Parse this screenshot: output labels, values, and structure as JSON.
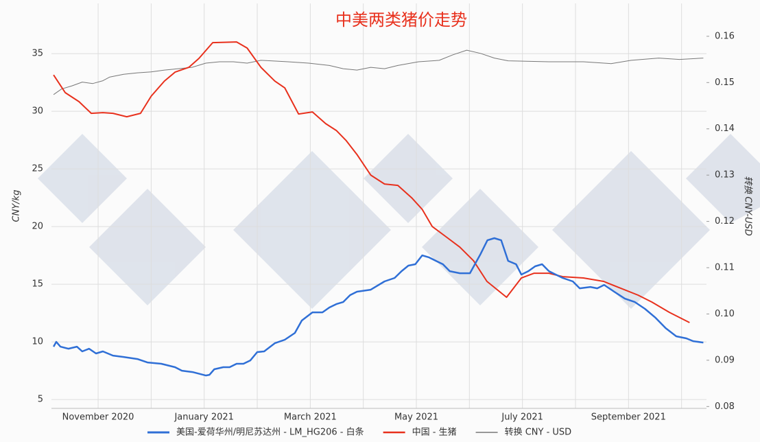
{
  "chart_data": {
    "type": "line",
    "title": "中美两类猪价走势",
    "ylabel": "CNY/kg",
    "y2label": "转换 CNY-USD",
    "xlim": [
      10.12,
      22.47
    ],
    "xticks": [
      {
        "value": 11,
        "label": "November 2020"
      },
      {
        "value": 13,
        "label": "January 2021"
      },
      {
        "value": 15,
        "label": "March 2021"
      },
      {
        "value": 17,
        "label": "May 2021"
      },
      {
        "value": 19,
        "label": "July 2021"
      },
      {
        "value": 21,
        "label": "September 2021"
      }
    ],
    "xminor": [
      12,
      14,
      16,
      18,
      20,
      22
    ],
    "ylim": [
      4.23,
      39.35
    ],
    "yticks": [
      5,
      10,
      15,
      20,
      25,
      30,
      35
    ],
    "y2lim": [
      0.0796,
      0.1671
    ],
    "y2ticks": [
      0.08,
      0.09,
      {
        "value": 0.1,
        "label": "0.10"
      },
      0.11,
      0.12,
      0.13,
      0.14,
      0.15,
      0.16
    ],
    "grid": true,
    "legend": "bottom",
    "series": [
      {
        "name": "美国-爱荷华州/明尼苏达州 - LM_HG206 - 白条",
        "color": "#2f6fd6",
        "width": 2.5,
        "x": [
          10.16,
          10.21,
          10.29,
          10.44,
          10.6,
          10.7,
          10.83,
          10.96,
          11.09,
          11.28,
          11.48,
          11.74,
          11.93,
          12.19,
          12.45,
          12.58,
          12.78,
          13.03,
          13.1,
          13.19,
          13.36,
          13.48,
          13.61,
          13.74,
          13.87,
          14.0,
          14.13,
          14.33,
          14.52,
          14.71,
          14.84,
          15.04,
          15.23,
          15.36,
          15.49,
          15.62,
          15.75,
          15.88,
          16.14,
          16.4,
          16.59,
          16.72,
          16.85,
          16.98,
          17.11,
          17.24,
          17.37,
          17.5,
          17.63,
          17.82,
          18.01,
          18.21,
          18.34,
          18.47,
          18.6,
          18.73,
          18.88,
          18.98,
          19.11,
          19.24,
          19.37,
          19.5,
          19.63,
          19.76,
          19.95,
          20.08,
          20.28,
          20.41,
          20.54,
          20.73,
          20.93,
          21.12,
          21.31,
          21.51,
          21.7,
          21.9,
          22.09,
          22.22,
          22.41
        ],
        "values": [
          9.58,
          10.0,
          9.58,
          9.4,
          9.58,
          9.17,
          9.4,
          8.99,
          9.17,
          8.81,
          8.69,
          8.51,
          8.21,
          8.1,
          7.8,
          7.5,
          7.38,
          7.08,
          7.14,
          7.62,
          7.8,
          7.8,
          8.1,
          8.1,
          8.39,
          9.11,
          9.17,
          9.88,
          10.18,
          10.77,
          11.85,
          12.56,
          12.56,
          12.98,
          13.27,
          13.45,
          14.05,
          14.35,
          14.52,
          15.24,
          15.54,
          16.13,
          16.61,
          16.73,
          17.5,
          17.32,
          17.02,
          16.73,
          16.13,
          15.95,
          15.95,
          17.62,
          18.81,
          18.99,
          18.81,
          17.02,
          16.73,
          15.83,
          16.13,
          16.55,
          16.73,
          16.13,
          15.83,
          15.54,
          15.24,
          14.64,
          14.76,
          14.64,
          14.94,
          14.35,
          13.75,
          13.45,
          12.86,
          12.08,
          11.19,
          10.48,
          10.3,
          10.06,
          9.94
        ]
      },
      {
        "name": "中国 - 生猪",
        "color": "#e8301c",
        "width": 2,
        "x": [
          10.16,
          10.38,
          10.64,
          10.87,
          11.09,
          11.28,
          11.54,
          11.8,
          12.0,
          12.25,
          12.45,
          12.71,
          12.9,
          13.16,
          13.61,
          13.81,
          14.07,
          14.33,
          14.52,
          14.78,
          15.04,
          15.29,
          15.49,
          15.68,
          15.88,
          16.14,
          16.4,
          16.65,
          16.91,
          17.11,
          17.3,
          17.56,
          17.82,
          18.08,
          18.33,
          18.7,
          18.98,
          19.22,
          19.5,
          19.76,
          20.15,
          20.53,
          20.79,
          21.18,
          21.44,
          21.77,
          22.15
        ],
        "values": [
          33.15,
          31.61,
          30.83,
          29.82,
          29.88,
          29.82,
          29.52,
          29.82,
          31.31,
          32.62,
          33.39,
          33.81,
          34.58,
          35.95,
          36.01,
          35.48,
          33.81,
          32.62,
          32.02,
          29.76,
          29.94,
          28.93,
          28.33,
          27.44,
          26.25,
          24.46,
          23.69,
          23.57,
          22.5,
          21.49,
          20.0,
          19.11,
          18.21,
          17.02,
          15.24,
          13.87,
          15.54,
          15.95,
          15.95,
          15.65,
          15.54,
          15.24,
          14.76,
          14.05,
          13.45,
          12.56,
          11.67
        ]
      },
      {
        "name": "转换 CNY - USD",
        "color": "#777777",
        "width": 1,
        "axis": "y2",
        "x": [
          10.16,
          10.31,
          10.51,
          10.7,
          10.9,
          11.09,
          11.22,
          11.48,
          11.74,
          12.0,
          12.25,
          12.51,
          12.77,
          13.03,
          13.29,
          13.55,
          13.81,
          14.07,
          14.58,
          14.97,
          15.36,
          15.62,
          15.88,
          16.14,
          16.4,
          16.65,
          17.04,
          17.43,
          17.69,
          17.95,
          18.21,
          18.47,
          18.73,
          19.5,
          20.15,
          20.67,
          21.05,
          21.57,
          21.96,
          22.41
        ],
        "values": [
          0.1474,
          0.1486,
          0.1493,
          0.1501,
          0.1498,
          0.1504,
          0.1512,
          0.1518,
          0.1521,
          0.1523,
          0.1527,
          0.153,
          0.1533,
          0.1542,
          0.1545,
          0.1545,
          0.1542,
          0.1548,
          0.1545,
          0.1542,
          0.1537,
          0.153,
          0.1527,
          0.1533,
          0.153,
          0.1537,
          0.1545,
          0.1548,
          0.156,
          0.157,
          0.1563,
          0.1553,
          0.1547,
          0.1545,
          0.1545,
          0.1541,
          0.1548,
          0.1553,
          0.155,
          0.1553
        ]
      }
    ]
  }
}
